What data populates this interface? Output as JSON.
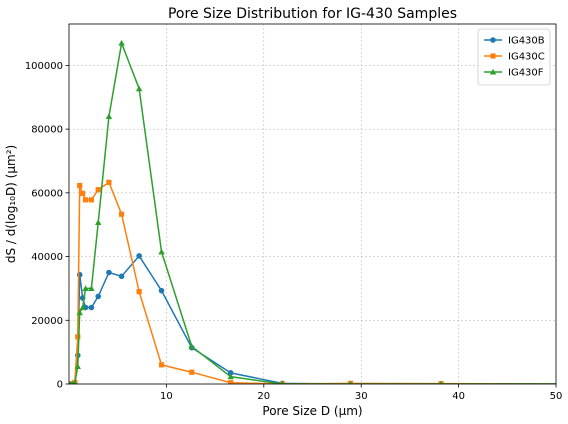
{
  "chart_data": {
    "type": "line",
    "title": "Pore Size Distribution for IG-430 Samples",
    "xlabel": "Pore Size D (μm)",
    "ylabel": "dS / d(log₁₀D) (μm²)",
    "xlim": [
      0,
      50
    ],
    "ylim": [
      0,
      113000
    ],
    "x_ticks": [
      10,
      20,
      30,
      40,
      50
    ],
    "y_ticks": [
      0,
      20000,
      40000,
      60000,
      80000,
      100000
    ],
    "grid": true,
    "legend_position": "top-right",
    "series": [
      {
        "name": "IG430B",
        "color": "#1f77b4",
        "marker": "circle",
        "x": [
          0.2,
          0.4,
          0.6,
          0.9,
          1.1,
          1.4,
          1.7,
          2.3,
          3.0,
          4.1,
          5.4,
          7.2,
          9.5,
          12.6,
          16.6,
          21.9,
          28.9,
          38.2,
          50.4
        ],
        "y": [
          0,
          0,
          200,
          9000,
          34300,
          27000,
          24000,
          24000,
          27500,
          35000,
          33800,
          40200,
          29300,
          11400,
          3500,
          200,
          0,
          0,
          0
        ]
      },
      {
        "name": "IG430C",
        "color": "#ff7f0e",
        "marker": "square",
        "x": [
          0.2,
          0.4,
          0.6,
          0.9,
          1.1,
          1.4,
          1.7,
          2.3,
          3.0,
          4.1,
          5.4,
          7.2,
          9.5,
          12.6,
          16.6,
          21.9,
          28.9,
          38.2,
          50.4
        ],
        "y": [
          0,
          0,
          500,
          14800,
          62300,
          59800,
          57800,
          57800,
          61000,
          63300,
          53300,
          29000,
          6000,
          3700,
          400,
          0,
          200,
          100,
          0
        ]
      },
      {
        "name": "IG430F",
        "color": "#2ca02c",
        "marker": "triangle",
        "x": [
          0.2,
          0.4,
          0.6,
          0.9,
          1.1,
          1.4,
          1.7,
          2.3,
          3.0,
          4.1,
          5.4,
          7.2,
          9.5,
          12.6,
          16.6,
          21.9,
          28.9,
          38.2,
          50.4
        ],
        "y": [
          0,
          0,
          300,
          5500,
          22400,
          24000,
          30000,
          30000,
          50700,
          84000,
          107000,
          92700,
          41500,
          11800,
          2300,
          0,
          0,
          0,
          0
        ]
      }
    ]
  }
}
